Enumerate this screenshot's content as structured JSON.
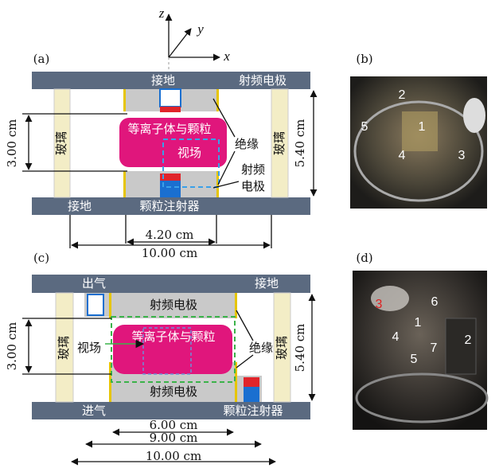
{
  "axes": {
    "z": "z",
    "y": "y",
    "x": "x"
  },
  "panel_a": {
    "label": "(a)",
    "top_ground": "接地",
    "top_electrode": "射频电极",
    "plasma": "等离子体与颗粒",
    "field_of_view": "视场",
    "insulation": "绝缘",
    "rf_electrode": [
      "射频",
      "电极"
    ],
    "glass_left": "玻璃",
    "glass_right": "玻璃",
    "gap": "3.00 cm",
    "height": "5.40 cm",
    "bottom_ground": "接地",
    "injector": "颗粒注射器",
    "inner_width": "4.20 cm",
    "outer_width": "10.00 cm"
  },
  "panel_b": {
    "label": "(b)",
    "numbers": [
      "2",
      "5",
      "1",
      "4",
      "3"
    ]
  },
  "panel_c": {
    "label": "(c)",
    "outlet": "出气",
    "top_ground": "接地",
    "top_electrode": "射频电极",
    "gap": "3.00 cm",
    "field_of_view": "视场",
    "plasma": "等离子体与颗粒",
    "insulation": "绝缘",
    "glass_left": "玻璃",
    "glass_right": "玻璃",
    "height": "5.40 cm",
    "bottom_electrode": "射频电极",
    "inlet": "进气",
    "injector": "颗粒注射器",
    "width_1": "6.00 cm",
    "width_2": "9.00 cm",
    "width_3": "10.00 cm"
  },
  "panel_d": {
    "label": "(d)",
    "numbers": [
      "3",
      "6",
      "1",
      "4",
      "7",
      "2",
      "5"
    ]
  }
}
